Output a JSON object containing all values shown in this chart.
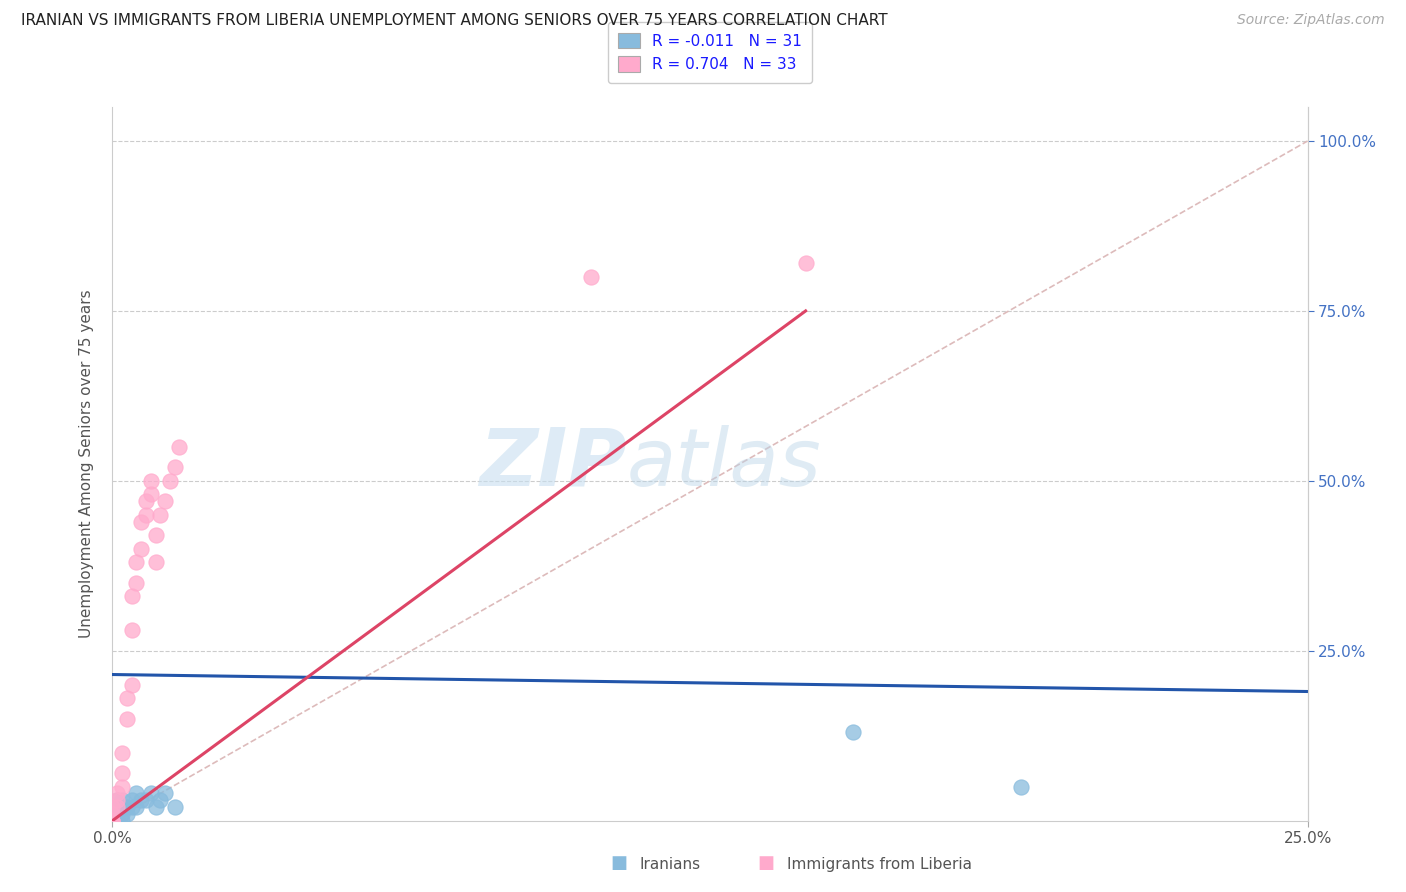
{
  "title": "IRANIAN VS IMMIGRANTS FROM LIBERIA UNEMPLOYMENT AMONG SENIORS OVER 75 YEARS CORRELATION CHART",
  "source": "Source: ZipAtlas.com",
  "ylabel": "Unemployment Among Seniors over 75 years",
  "xlim": [
    0.0,
    0.25
  ],
  "ylim": [
    0.0,
    1.05
  ],
  "iranians_R": "-0.011",
  "iranians_N": "31",
  "liberia_R": "0.704",
  "liberia_N": "33",
  "iranians_color": "#88bbdd",
  "liberia_color": "#ffaacc",
  "iranians_line_color": "#2255aa",
  "liberia_line_color": "#dd4466",
  "diagonal_color": "#ddbbbb",
  "watermark_zip": "ZIP",
  "watermark_atlas": "atlas",
  "background_color": "#ffffff",
  "grid_color": "#cccccc",
  "iranians_x": [
    0.0,
    0.0,
    0.0,
    0.0,
    0.0,
    0.0,
    0.001,
    0.001,
    0.001,
    0.001,
    0.001,
    0.001,
    0.002,
    0.002,
    0.002,
    0.002,
    0.003,
    0.003,
    0.004,
    0.004,
    0.005,
    0.005,
    0.006,
    0.007,
    0.008,
    0.009,
    0.01,
    0.011,
    0.013,
    0.155,
    0.19
  ],
  "iranians_y": [
    0.0,
    0.0,
    0.0,
    0.01,
    0.01,
    0.02,
    0.0,
    0.0,
    0.01,
    0.02,
    0.02,
    0.03,
    0.0,
    0.01,
    0.02,
    0.03,
    0.01,
    0.02,
    0.02,
    0.03,
    0.02,
    0.04,
    0.03,
    0.03,
    0.04,
    0.02,
    0.03,
    0.04,
    0.02,
    0.13,
    0.05
  ],
  "liberia_x": [
    0.0,
    0.0,
    0.0,
    0.0,
    0.0,
    0.001,
    0.001,
    0.001,
    0.002,
    0.002,
    0.002,
    0.003,
    0.003,
    0.004,
    0.004,
    0.004,
    0.005,
    0.005,
    0.006,
    0.006,
    0.007,
    0.007,
    0.008,
    0.008,
    0.009,
    0.009,
    0.01,
    0.011,
    0.012,
    0.013,
    0.014,
    0.1,
    0.145
  ],
  "liberia_y": [
    0.0,
    0.0,
    0.0,
    0.01,
    0.02,
    0.02,
    0.03,
    0.04,
    0.05,
    0.07,
    0.1,
    0.15,
    0.18,
    0.2,
    0.28,
    0.33,
    0.35,
    0.38,
    0.4,
    0.44,
    0.45,
    0.47,
    0.48,
    0.5,
    0.38,
    0.42,
    0.45,
    0.47,
    0.5,
    0.52,
    0.55,
    0.8,
    0.82
  ],
  "iran_line_x0": 0.0,
  "iran_line_y0": 0.215,
  "iran_line_x1": 0.25,
  "iran_line_y1": 0.19,
  "lib_line_x0": 0.0,
  "lib_line_y0": 0.0,
  "lib_line_x1": 0.145,
  "lib_line_y1": 0.75
}
